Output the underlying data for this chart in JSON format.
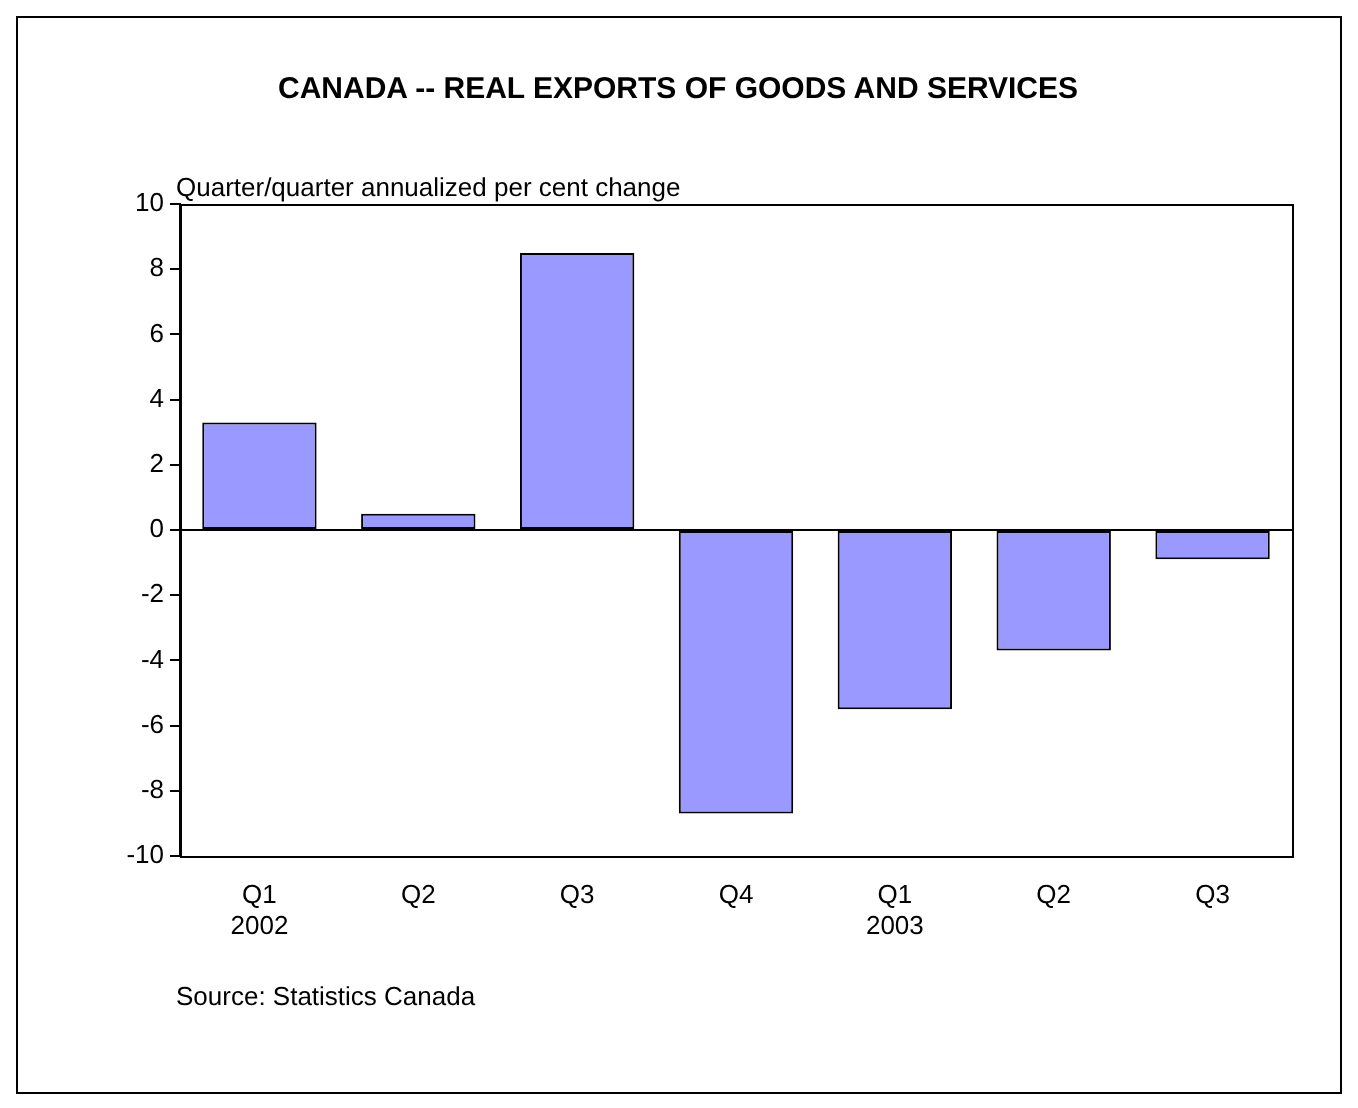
{
  "chart_data": {
    "type": "bar",
    "title": "CANADA -- REAL EXPORTS OF GOODS AND SERVICES",
    "ylabel": "Quarter/quarter annualized per cent change",
    "categories": [
      "Q1\n2002",
      "Q2",
      "Q3",
      "Q4",
      "Q1\n2003",
      "Q2",
      "Q3"
    ],
    "values": [
      3.3,
      0.5,
      8.5,
      -8.7,
      -5.5,
      -3.7,
      -0.9
    ],
    "color": "#9999ff",
    "ylim": [
      -10,
      10
    ],
    "yticks": [
      -10,
      -8,
      -6,
      -4,
      -2,
      0,
      2,
      4,
      6,
      8,
      10
    ],
    "legend": false,
    "annotations": [
      "Source: Statistics Canada"
    ]
  }
}
